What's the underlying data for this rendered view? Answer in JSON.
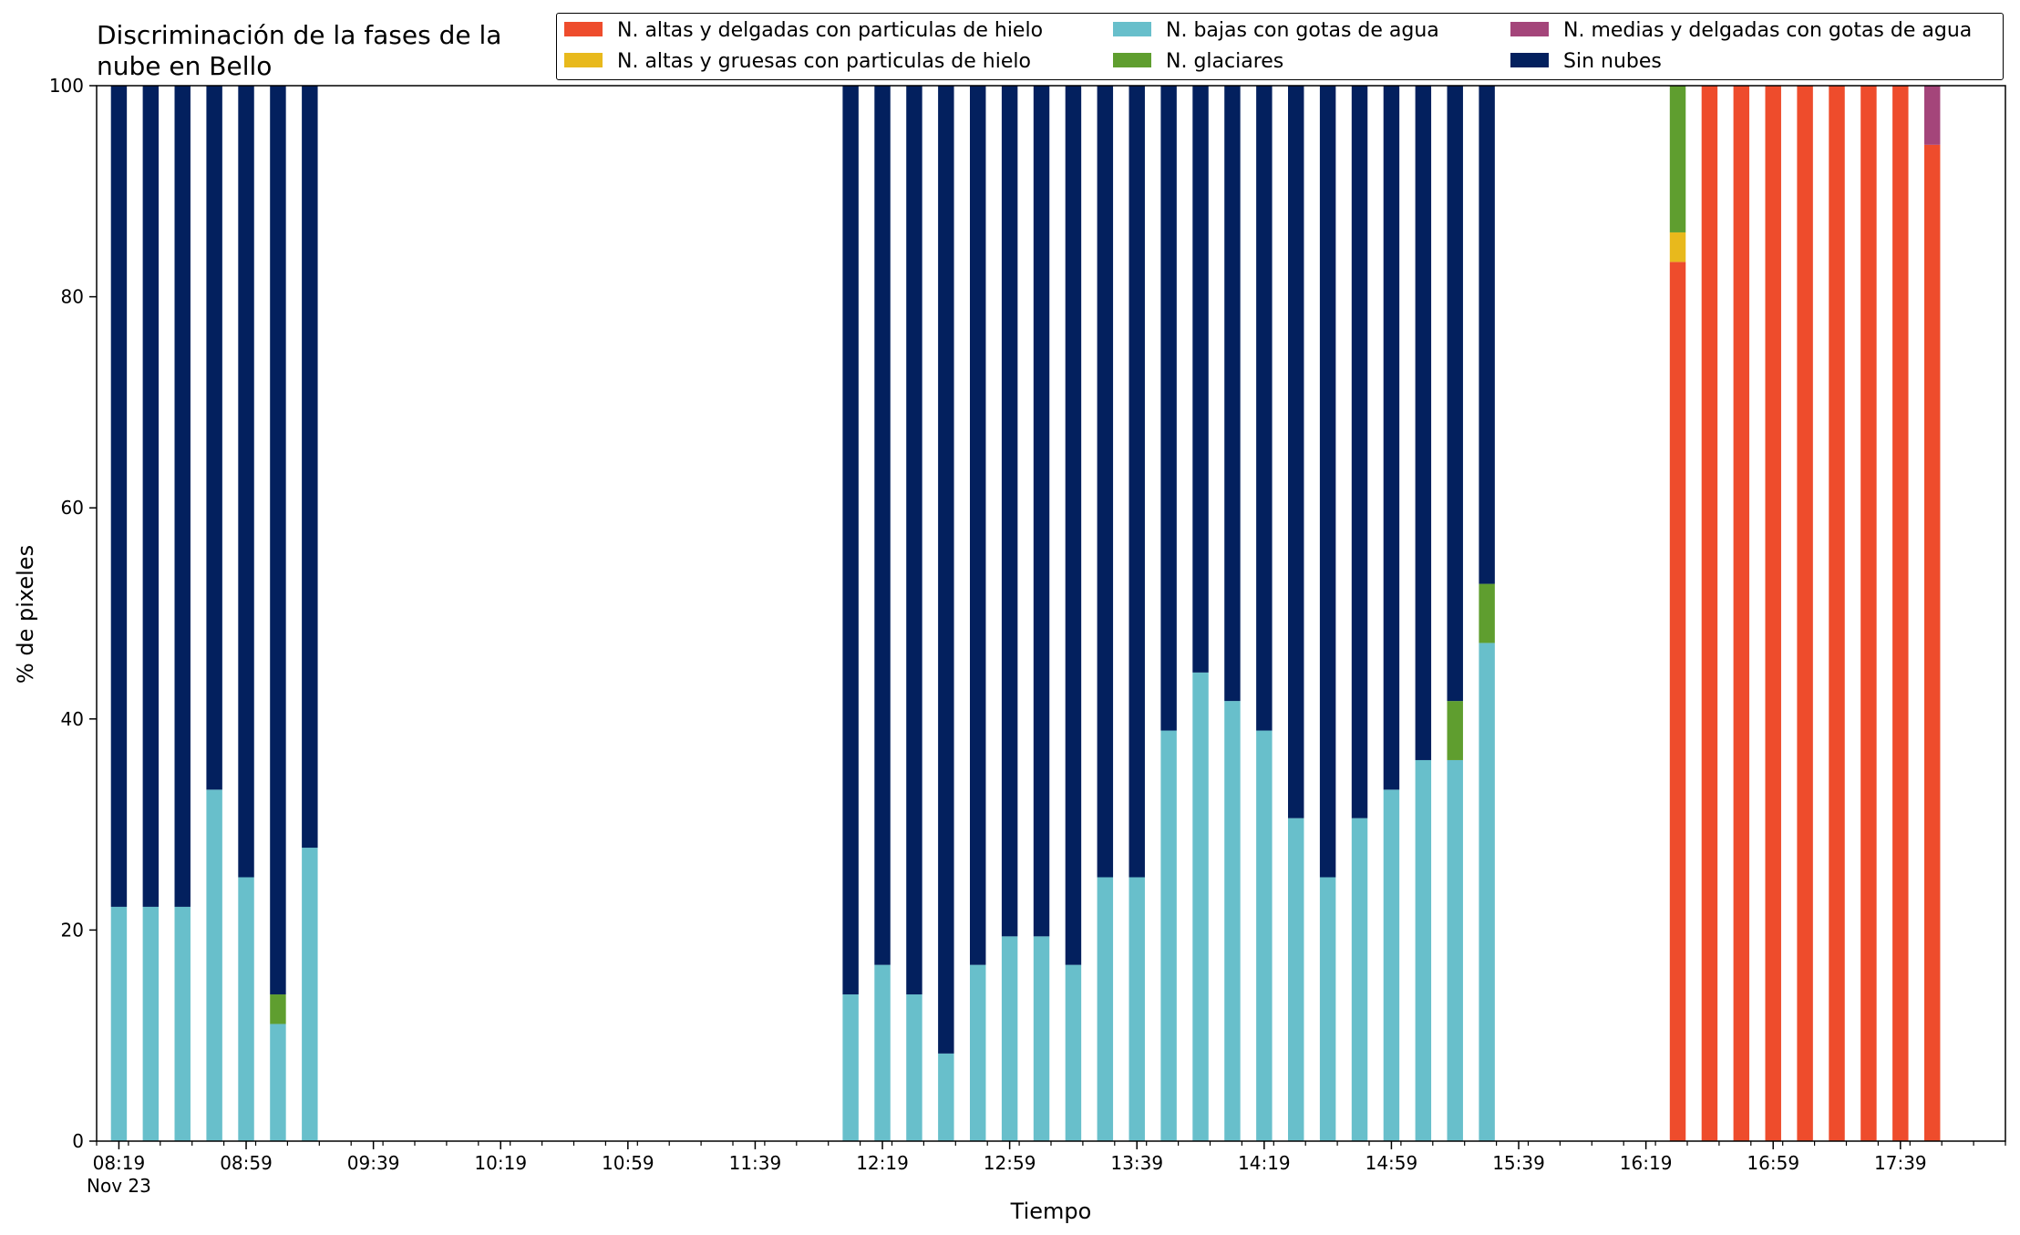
{
  "chart_data": {
    "type": "bar",
    "stacked": true,
    "title": "Discriminación de la fases de la nube en Bello",
    "xlabel": "Tiempo",
    "ylabel": "% de pixeles",
    "ylim": [
      0,
      100
    ],
    "yticks": [
      0,
      20,
      40,
      60,
      80,
      100
    ],
    "xlim": [
      "08:12",
      "18:12"
    ],
    "x_major_ticks": [
      "08:19",
      "08:59",
      "09:39",
      "10:19",
      "10:59",
      "11:39",
      "12:19",
      "12:59",
      "13:39",
      "14:19",
      "14:59",
      "15:39",
      "16:19",
      "16:59",
      "17:39"
    ],
    "x_first_tick_sublabel": "Nov 23",
    "x_minor_tick_step_minutes": 10,
    "x": [
      "08:19",
      "08:29",
      "08:39",
      "08:49",
      "08:59",
      "09:09",
      "09:19",
      "12:09",
      "12:19",
      "12:29",
      "12:39",
      "12:49",
      "12:59",
      "13:09",
      "13:19",
      "13:29",
      "13:39",
      "13:49",
      "13:59",
      "14:09",
      "14:19",
      "14:29",
      "14:39",
      "14:49",
      "14:59",
      "15:09",
      "15:19",
      "15:29",
      "16:29",
      "16:39",
      "16:49",
      "16:59",
      "17:09",
      "17:19",
      "17:29",
      "17:39",
      "17:49"
    ],
    "series": [
      {
        "name": "N. altas y delgadas con particulas de hielo",
        "color": "#ee4c2c",
        "values": [
          0,
          0,
          0,
          0,
          0,
          0,
          0,
          0,
          0,
          0,
          0,
          0,
          0,
          0,
          0,
          0,
          0,
          0,
          0,
          0,
          0,
          0,
          0,
          0,
          0,
          0,
          0,
          0,
          83.3,
          100,
          100,
          100,
          100,
          100,
          100,
          100,
          94.4
        ]
      },
      {
        "name": "N. altas y gruesas con particulas de hielo",
        "color": "#e8b91c",
        "values": [
          0,
          0,
          0,
          0,
          0,
          0,
          0,
          0,
          0,
          0,
          0,
          0,
          0,
          0,
          0,
          0,
          0,
          0,
          0,
          0,
          0,
          0,
          0,
          0,
          0,
          0,
          0,
          0,
          2.8,
          0,
          0,
          0,
          0,
          0,
          0,
          0,
          0
        ]
      },
      {
        "name": "N. bajas con gotas de agua",
        "color": "#68bfcb",
        "values": [
          22.2,
          22.2,
          22.2,
          33.3,
          25.0,
          11.1,
          27.8,
          13.9,
          16.7,
          13.9,
          8.3,
          16.7,
          19.4,
          19.4,
          16.7,
          25.0,
          25.0,
          38.9,
          44.4,
          41.7,
          38.9,
          30.6,
          25.0,
          30.6,
          33.3,
          36.1,
          36.1,
          47.2,
          0,
          0,
          0,
          0,
          0,
          0,
          0,
          0,
          0
        ]
      },
      {
        "name": "N. glaciares",
        "color": "#5f9e2f",
        "values": [
          0,
          0,
          0,
          0,
          0,
          2.8,
          0,
          0,
          0,
          0,
          0,
          0,
          0,
          0,
          0,
          0,
          0,
          0,
          0,
          0,
          0,
          0,
          0,
          0,
          0,
          0,
          5.6,
          5.6,
          13.9,
          0,
          0,
          0,
          0,
          0,
          0,
          0,
          0
        ]
      },
      {
        "name": "N. medias y delgadas con gotas de agua",
        "color": "#a4457a",
        "values": [
          0,
          0,
          0,
          0,
          0,
          0,
          0,
          0,
          0,
          0,
          0,
          0,
          0,
          0,
          0,
          0,
          0,
          0,
          0,
          0,
          0,
          0,
          0,
          0,
          0,
          0,
          0,
          0,
          0,
          0,
          0,
          0,
          0,
          0,
          0,
          0,
          5.6
        ]
      },
      {
        "name": "Sin nubes",
        "color": "#03205e",
        "values": [
          77.8,
          77.8,
          77.8,
          66.7,
          75.0,
          86.1,
          72.2,
          86.1,
          83.3,
          86.1,
          91.7,
          83.3,
          80.6,
          80.6,
          83.3,
          75.0,
          75.0,
          61.1,
          55.6,
          58.3,
          61.1,
          69.4,
          75.0,
          69.4,
          66.7,
          63.9,
          58.3,
          47.2,
          0,
          0,
          0,
          0,
          0,
          0,
          0,
          0,
          0
        ]
      }
    ],
    "legend_position": "top-right",
    "grid": false
  }
}
